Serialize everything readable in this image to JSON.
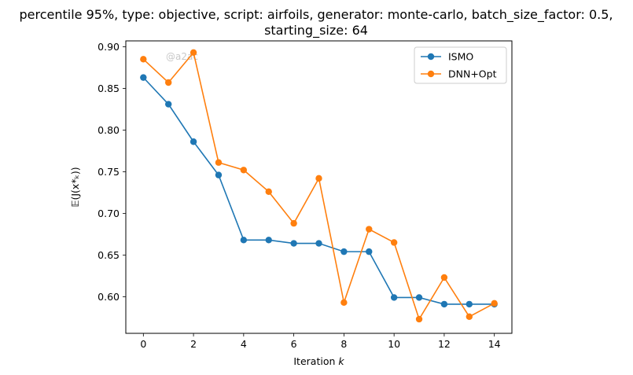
{
  "chart_data": {
    "type": "line",
    "title_lines": [
      "percentile 95%, type: objective, script: airfoils, generator: monte-carlo, batch_size_factor: 0.5,",
      "starting_size: 64"
    ],
    "xlabel": "Iteration k",
    "ylabel": "𝔼(J(x*ₖ))",
    "x": [
      0,
      1,
      2,
      3,
      4,
      5,
      6,
      7,
      8,
      9,
      10,
      11,
      12,
      13,
      14
    ],
    "xticks": [
      0,
      2,
      4,
      6,
      8,
      10,
      12,
      14
    ],
    "yticks": [
      0.6,
      0.65,
      0.7,
      0.75,
      0.8,
      0.85,
      0.9
    ],
    "xlim": [
      -0.7,
      14.7
    ],
    "ylim": [
      0.556,
      0.907
    ],
    "grid": false,
    "legend_position": "top-right",
    "watermark": "@a2ac",
    "series": [
      {
        "name": "ISMO",
        "color": "#1f77b4",
        "values": [
          0.863,
          0.831,
          0.786,
          0.746,
          0.668,
          0.668,
          0.664,
          0.664,
          0.654,
          0.654,
          0.599,
          0.599,
          0.591,
          0.591,
          0.591
        ]
      },
      {
        "name": "DNN+Opt",
        "color": "#ff7f0e",
        "values": [
          0.885,
          0.857,
          0.893,
          0.761,
          0.752,
          0.726,
          0.688,
          0.742,
          0.593,
          0.681,
          0.665,
          0.573,
          0.623,
          0.576,
          0.592
        ]
      }
    ]
  }
}
